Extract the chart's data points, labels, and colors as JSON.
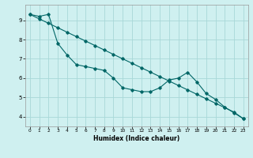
{
  "xlabel": "Humidex (Indice chaleur)",
  "bg_color": "#cff0f0",
  "grid_color": "#a8d8d8",
  "line_color": "#006666",
  "xlim": [
    -0.5,
    23.5
  ],
  "ylim": [
    3.5,
    9.8
  ],
  "xticks": [
    0,
    1,
    2,
    3,
    4,
    5,
    6,
    7,
    8,
    9,
    10,
    11,
    12,
    13,
    14,
    15,
    16,
    17,
    18,
    19,
    20,
    21,
    22,
    23
  ],
  "yticks": [
    4,
    5,
    6,
    7,
    8,
    9
  ],
  "line1_x": [
    0,
    1,
    2,
    3,
    4,
    5,
    6,
    7,
    8,
    9,
    10,
    11,
    12,
    13,
    14,
    15,
    16,
    17,
    18,
    19,
    20,
    21,
    22,
    23
  ],
  "line1_y": [
    9.3,
    9.2,
    9.3,
    7.8,
    7.2,
    6.7,
    6.6,
    6.5,
    6.4,
    6.0,
    5.5,
    5.4,
    5.3,
    5.3,
    5.5,
    5.9,
    6.0,
    6.3,
    5.8,
    5.2,
    4.9,
    4.5,
    4.2,
    3.9
  ],
  "line2_x": [
    0,
    1,
    2,
    3,
    4,
    5,
    6,
    7,
    8,
    9,
    10,
    11,
    12,
    13,
    14,
    15,
    16,
    17,
    18,
    19,
    20,
    21,
    22,
    23
  ],
  "line2_y": [
    9.3,
    9.07,
    8.84,
    8.61,
    8.38,
    8.15,
    7.92,
    7.69,
    7.46,
    7.23,
    7.0,
    6.77,
    6.54,
    6.31,
    6.08,
    5.85,
    5.62,
    5.39,
    5.16,
    4.93,
    4.7,
    4.47,
    4.24,
    3.9
  ]
}
